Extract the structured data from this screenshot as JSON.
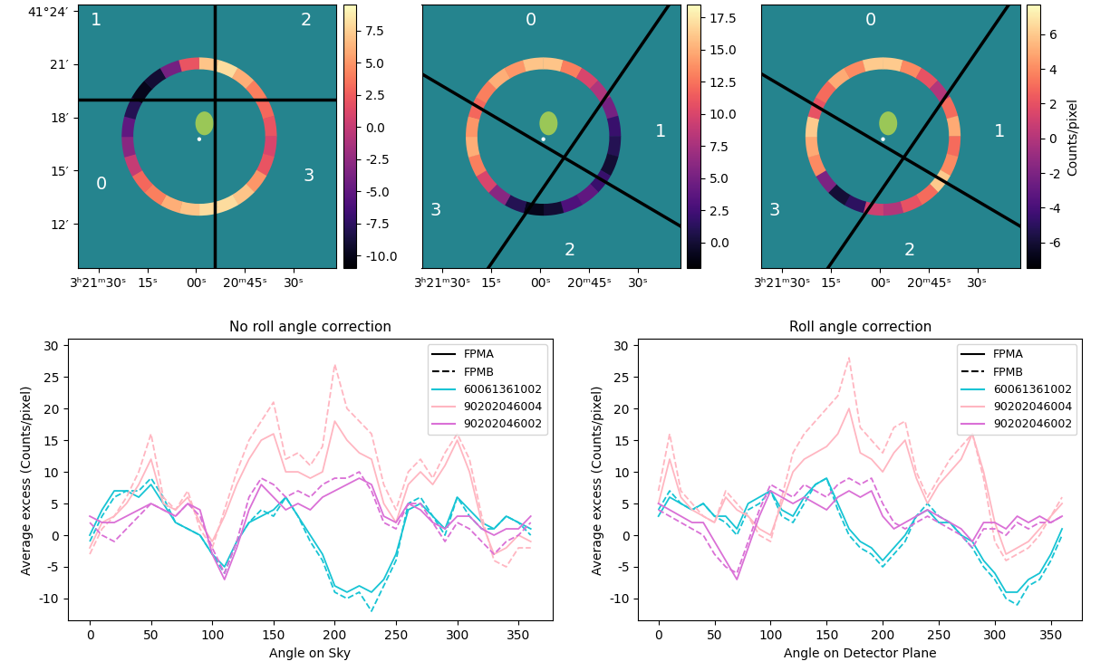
{
  "chart_data": [
    {
      "type": "ring_map",
      "xlim": [
        96.4,
        16.9
      ],
      "xticks": [
        {
          "value": 90,
          "label": "3ʰ21ᵐ30ˢ"
        },
        {
          "value": 75,
          "label": "15ˢ"
        },
        {
          "value": 60,
          "label": "00ˢ"
        },
        {
          "value": 45,
          "label": "20ᵐ45ˢ"
        },
        {
          "value": 30,
          "label": "30ˢ"
        }
      ],
      "ylim": [
        9.48,
        24.35
      ],
      "yticks": [
        {
          "value": 24,
          "label": "41°24′"
        },
        {
          "value": 21,
          "label": "21′"
        },
        {
          "value": 18,
          "label": "18′"
        },
        {
          "value": 15,
          "label": "15′"
        },
        {
          "value": 12,
          "label": "12′"
        }
      ],
      "annotations": [
        "1",
        "2",
        "0",
        "3"
      ],
      "ring_values": [
        7,
        8,
        6,
        4,
        3,
        2,
        1,
        2,
        5,
        7,
        8,
        8,
        7,
        6,
        4,
        3,
        0,
        -3,
        -5,
        -8,
        -10,
        -9,
        -4,
        2
      ],
      "colorbar_range": [
        -11.0,
        9.5
      ],
      "colorbar_ticks": [
        -10.0,
        -7.5,
        -5.0,
        -2.5,
        0.0,
        2.5,
        5.0,
        7.5
      ]
    },
    {
      "type": "ring_map",
      "xlim": [
        96.4,
        16.9
      ],
      "xticks": [
        {
          "value": 90,
          "label": "3ʰ21ᵐ30ˢ"
        },
        {
          "value": 75,
          "label": "15ˢ"
        },
        {
          "value": 60,
          "label": "00ˢ"
        },
        {
          "value": 45,
          "label": "20ᵐ45ˢ"
        },
        {
          "value": 30,
          "label": "30ˢ"
        }
      ],
      "ylim": [
        9.48,
        24.35
      ],
      "tick_labels": "x",
      "annotations": [
        "0",
        "1",
        "3",
        "2"
      ],
      "ring_values": [
        16,
        13,
        10,
        8,
        5,
        2,
        1,
        0,
        2,
        4,
        3,
        0,
        -1,
        1,
        6,
        10,
        13,
        15,
        14,
        12,
        13,
        15,
        14,
        16
      ],
      "colorbar_range": [
        -2.0,
        18.5
      ],
      "colorbar_ticks": [
        0.0,
        2.5,
        5.0,
        7.5,
        10.0,
        12.5,
        15.0,
        17.5
      ]
    },
    {
      "type": "ring_map",
      "xlim": [
        96.4,
        16.9
      ],
      "xticks": [
        {
          "value": 90,
          "label": "3ʰ21ᵐ30ˢ"
        },
        {
          "value": 75,
          "label": "15ˢ"
        },
        {
          "value": 60,
          "label": "00ˢ"
        },
        {
          "value": 45,
          "label": "20ᵐ45ˢ"
        },
        {
          "value": 30,
          "label": "30ˢ"
        }
      ],
      "ylim": [
        9.48,
        24.35
      ],
      "tick_labels": "x",
      "annotations": [
        "0",
        "1",
        "3",
        "2"
      ],
      "ring_values": [
        6,
        4,
        2,
        0,
        3,
        5,
        3,
        4,
        6,
        3,
        2,
        0,
        1,
        -5,
        -6,
        -2,
        4,
        5,
        6,
        2,
        3,
        5,
        4,
        6
      ],
      "colorbar_range": [
        -7.5,
        7.7
      ],
      "colorbar_ticks": [
        -6,
        -4,
        -2,
        0,
        2,
        4,
        6
      ],
      "colorbar_label": "Counts/pixel"
    },
    {
      "type": "line",
      "title": "No roll angle correction",
      "x_label": "Angle on Sky",
      "y_label": "Average excess (Counts/pixel)",
      "x": [
        0,
        10,
        20,
        30,
        40,
        50,
        60,
        70,
        80,
        90,
        100,
        110,
        120,
        130,
        140,
        150,
        160,
        170,
        180,
        190,
        200,
        210,
        220,
        230,
        240,
        250,
        260,
        270,
        280,
        290,
        300,
        310,
        320,
        330,
        340,
        350,
        360
      ],
      "xlim": [
        -18,
        378
      ],
      "xticks": [
        0,
        50,
        100,
        150,
        200,
        250,
        300,
        350
      ],
      "ylim": [
        -13.5,
        31
      ],
      "yticks": [
        -10,
        -5,
        0,
        5,
        10,
        15,
        20,
        25,
        30
      ],
      "legend": "upper right",
      "modules": [
        {
          "name": "FPMA",
          "line_style": "solid"
        },
        {
          "name": "FPMB",
          "line_style": "dashed"
        }
      ],
      "series": [
        {
          "name": "60061361002",
          "color": "#17c4d4",
          "values": {
            "FPMA": [
              0,
              4,
              7,
              7,
              6,
              8,
              5,
              2,
              1,
              0,
              -3,
              -5,
              -1,
              2,
              3,
              4,
              6,
              3,
              0,
              -3,
              -8,
              -9,
              -8,
              -9,
              -7,
              -3,
              4,
              5,
              3,
              1,
              6,
              4,
              2,
              1,
              3,
              2,
              1
            ],
            "FPMB": [
              -1,
              3,
              6,
              7,
              7,
              9,
              6,
              2,
              1,
              0,
              -3,
              -6,
              -1,
              2,
              4,
              3,
              6,
              3,
              -1,
              -4,
              -9,
              -10,
              -9,
              -12,
              -8,
              -4,
              5,
              6,
              3,
              0,
              6,
              3,
              1,
              1,
              3,
              2,
              0
            ]
          }
        },
        {
          "name": "90202046004",
          "color": "#ffb6c1",
          "values": {
            "FPMA": [
              -2,
              2,
              3,
              5,
              8,
              12,
              5,
              4,
              6,
              2,
              -1,
              3,
              8,
              12,
              15,
              16,
              10,
              10,
              9,
              10,
              18,
              15,
              13,
              12,
              5,
              2,
              8,
              10,
              8,
              11,
              15,
              10,
              2,
              -3,
              -2,
              0,
              -1
            ],
            "FPMB": [
              -3,
              1,
              3,
              6,
              10,
              16,
              6,
              4,
              7,
              1,
              -2,
              4,
              10,
              15,
              18,
              21,
              12,
              13,
              11,
              14,
              27,
              20,
              18,
              16,
              8,
              4,
              10,
              12,
              9,
              13,
              16,
              12,
              3,
              -4,
              -5,
              -2,
              -2
            ]
          }
        },
        {
          "name": "90202046002",
          "color": "#da70d6",
          "values": {
            "FPMA": [
              3,
              2,
              2,
              3,
              4,
              5,
              4,
              3,
              5,
              4,
              -3,
              -7,
              -2,
              4,
              8,
              6,
              4,
              5,
              4,
              6,
              7,
              8,
              9,
              8,
              3,
              2,
              5,
              4,
              2,
              1,
              3,
              3,
              1,
              0,
              1,
              1,
              3
            ],
            "FPMB": [
              2,
              0,
              -1,
              1,
              3,
              5,
              4,
              3,
              5,
              3,
              -2,
              -6,
              -1,
              6,
              9,
              8,
              6,
              7,
              6,
              8,
              9,
              9,
              10,
              7,
              2,
              1,
              5,
              5,
              2,
              -1,
              2,
              1,
              -1,
              -3,
              -1,
              0,
              2
            ]
          }
        }
      ]
    },
    {
      "type": "line",
      "title": "Roll angle correction",
      "x_label": "Angle on Detector Plane",
      "y_label": "Average excess (Counts/pixel)",
      "x": [
        0,
        10,
        20,
        30,
        40,
        50,
        60,
        70,
        80,
        90,
        100,
        110,
        120,
        130,
        140,
        150,
        160,
        170,
        180,
        190,
        200,
        210,
        220,
        230,
        240,
        250,
        260,
        270,
        280,
        290,
        300,
        310,
        320,
        330,
        340,
        350,
        360
      ],
      "xlim": [
        -18,
        378
      ],
      "xticks": [
        0,
        50,
        100,
        150,
        200,
        250,
        300,
        350
      ],
      "ylim": [
        -13.5,
        31
      ],
      "yticks": [
        -10,
        -5,
        0,
        5,
        10,
        15,
        20,
        25,
        30
      ],
      "legend": "upper right",
      "modules": [
        {
          "name": "FPMA",
          "line_style": "solid"
        },
        {
          "name": "FPMB",
          "line_style": "dashed"
        }
      ],
      "series": [
        {
          "name": "60061361002",
          "color": "#17c4d4",
          "values": {
            "FPMA": [
              3,
              6,
              5,
              4,
              5,
              3,
              3,
              1,
              5,
              6,
              7,
              4,
              3,
              6,
              8,
              9,
              5,
              1,
              -1,
              -2,
              -4,
              -2,
              0,
              3,
              4,
              2,
              2,
              0,
              -1,
              -4,
              -6,
              -9,
              -9,
              -7,
              -6,
              -3,
              1
            ],
            "FPMB": [
              4,
              7,
              5,
              4,
              5,
              3,
              2,
              0,
              4,
              5,
              7,
              3,
              2,
              5,
              8,
              9,
              4,
              0,
              -2,
              -3,
              -5,
              -3,
              -1,
              3,
              5,
              3,
              2,
              0,
              -2,
              -5,
              -7,
              -10,
              -11,
              -8,
              -7,
              -4,
              0
            ]
          }
        },
        {
          "name": "90202046004",
          "color": "#ffb6c1",
          "values": {
            "FPMA": [
              5,
              12,
              6,
              4,
              3,
              2,
              6,
              4,
              3,
              1,
              0,
              5,
              10,
              12,
              13,
              14,
              16,
              20,
              13,
              12,
              10,
              13,
              15,
              9,
              5,
              8,
              10,
              12,
              16,
              10,
              2,
              -3,
              -2,
              -1,
              1,
              3,
              5
            ],
            "FPMB": [
              7,
              16,
              7,
              5,
              3,
              2,
              7,
              5,
              3,
              0,
              -1,
              6,
              13,
              16,
              18,
              20,
              22,
              28,
              17,
              15,
              13,
              17,
              18,
              10,
              6,
              9,
              12,
              14,
              16,
              9,
              -1,
              -4,
              -3,
              -2,
              0,
              3,
              6
            ]
          }
        },
        {
          "name": "90202046002",
          "color": "#da70d6",
          "values": {
            "FPMA": [
              5,
              4,
              3,
              2,
              2,
              -1,
              -4,
              -7,
              -2,
              3,
              7,
              6,
              5,
              6,
              5,
              4,
              6,
              7,
              6,
              7,
              3,
              1,
              2,
              3,
              4,
              3,
              2,
              1,
              -1,
              2,
              2,
              1,
              3,
              2,
              3,
              2,
              3
            ],
            "FPMB": [
              4,
              3,
              2,
              1,
              0,
              -3,
              -5,
              -6,
              -1,
              4,
              8,
              7,
              6,
              8,
              7,
              6,
              8,
              9,
              8,
              9,
              5,
              2,
              1,
              2,
              3,
              2,
              1,
              0,
              -2,
              1,
              1,
              0,
              2,
              1,
              2,
              2,
              3
            ]
          }
        }
      ]
    }
  ]
}
